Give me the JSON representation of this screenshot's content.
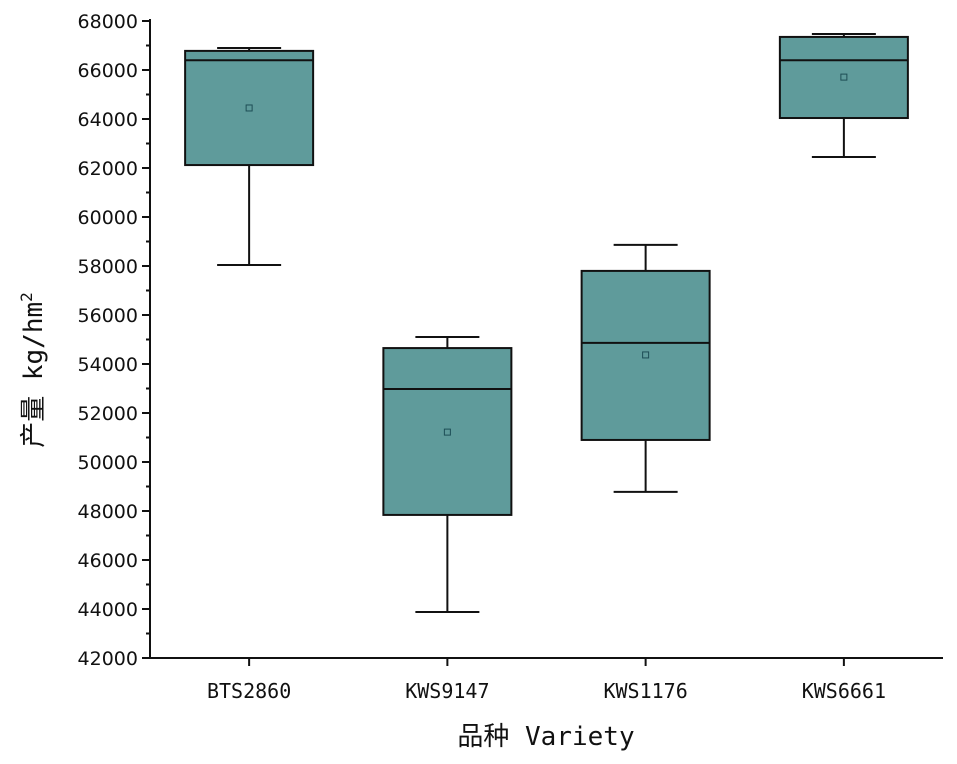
{
  "chart_data": {
    "type": "box",
    "title": "",
    "xlabel": "品种 Variety",
    "ylabel": "产量 kg/hm",
    "ylabel_superscript": "2",
    "ylim": [
      42000,
      68000
    ],
    "yticks": [
      42000,
      44000,
      46000,
      48000,
      50000,
      52000,
      54000,
      56000,
      58000,
      60000,
      62000,
      64000,
      66000,
      68000
    ],
    "y_minor_step": 1000,
    "box_color": "#5f9b9b",
    "categories": [
      "BTS2860",
      "KWS9147",
      "KWS1176",
      "KWS6661"
    ],
    "series": [
      {
        "name": "BTS2860",
        "min": 58040,
        "q1": 62120,
        "median": 66400,
        "q3": 66780,
        "max": 66900,
        "mean": 64450
      },
      {
        "name": "KWS9147",
        "min": 43880,
        "q1": 47840,
        "median": 52980,
        "q3": 54650,
        "max": 55100,
        "mean": 51220
      },
      {
        "name": "KWS1176",
        "min": 48780,
        "q1": 50900,
        "median": 54860,
        "q3": 57800,
        "max": 58860,
        "mean": 54370
      },
      {
        "name": "KWS6661",
        "min": 62450,
        "q1": 64040,
        "median": 66400,
        "q3": 67350,
        "max": 67470,
        "mean": 65710
      }
    ],
    "grid": false,
    "legend": "none"
  }
}
